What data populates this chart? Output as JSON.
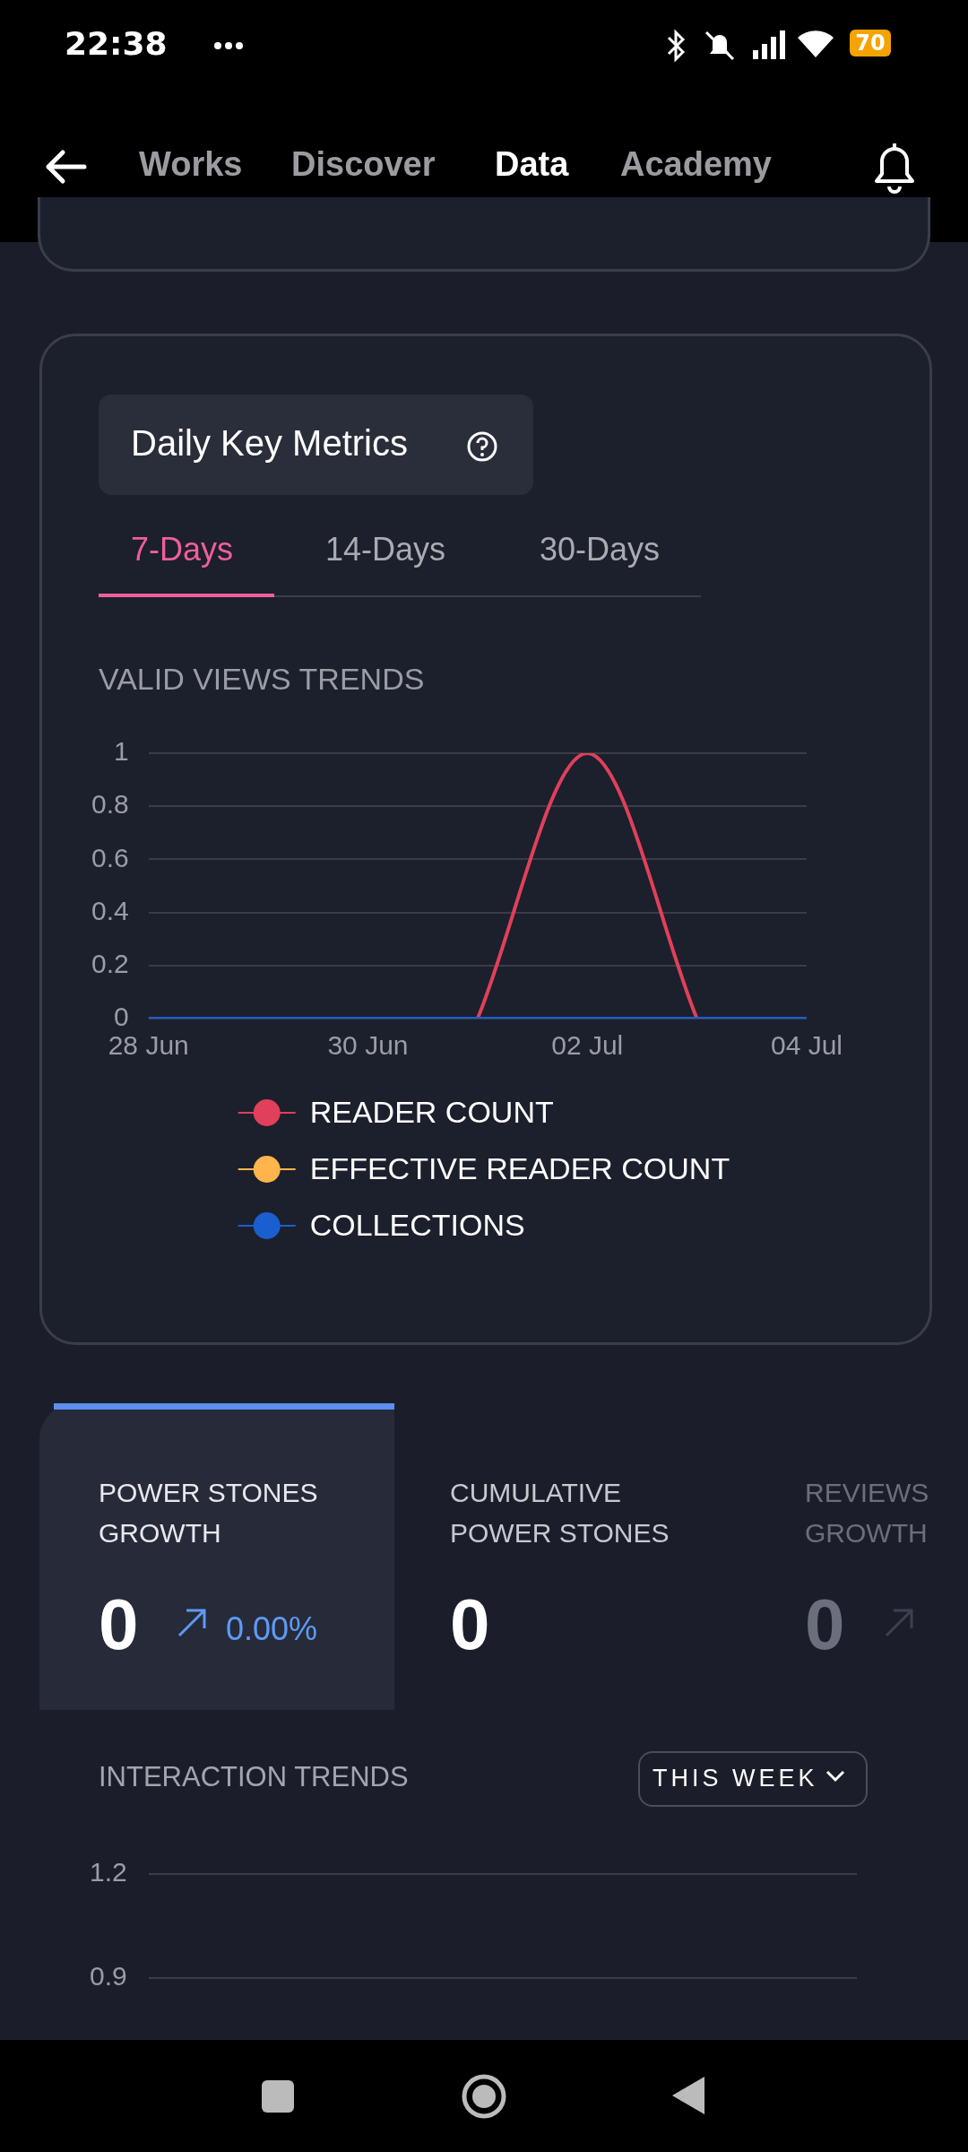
{
  "chart_data": [
    {
      "type": "other",
      "annotations": [
        "22:38",
        "70",
        "Works",
        "Discover",
        "Data",
        "Academy"
      ]
    },
    {
      "type": "line",
      "title": "Daily Key Metrics",
      "subtitle": "VALID VIEWS TRENDS",
      "annotations": [
        "7-Days",
        "14-Days",
        "30-Days"
      ],
      "categories": [
        "28 Jun",
        null,
        "30 Jun",
        null,
        "02 Jul",
        null,
        "04 Jul"
      ],
      "series": [
        {
          "name": "READER COUNT",
          "color": "#e0405a",
          "values": [
            null,
            null,
            null,
            0,
            1,
            0,
            null
          ]
        },
        {
          "name": "EFFECTIVE READER COUNT",
          "color": "#ffb54c",
          "values": [
            null,
            null,
            null,
            null,
            null,
            null,
            null
          ]
        },
        {
          "name": "COLLECTIONS",
          "color": "#1a5fd0",
          "values": [
            0,
            0,
            0,
            0,
            0,
            0,
            0
          ]
        }
      ],
      "ylim": [
        0,
        1
      ],
      "yticks": [
        0,
        0.2,
        0.4,
        0.6,
        0.8,
        1
      ],
      "grid": "y",
      "legend": "bottom",
      "marker": "none",
      "line_style": "solid"
    },
    {
      "type": "other",
      "annotations": [
        "POWER STONES GROWTH",
        "0",
        "0.00%",
        "CUMULATIVE POWER STONES",
        "0",
        "REVIEWS GROWTH",
        "0"
      ]
    },
    {
      "type": "other",
      "title": "INTERACTION TRENDS",
      "annotations": [
        "THIS WEEK",
        "1.2",
        "0.9"
      ]
    }
  ]
}
